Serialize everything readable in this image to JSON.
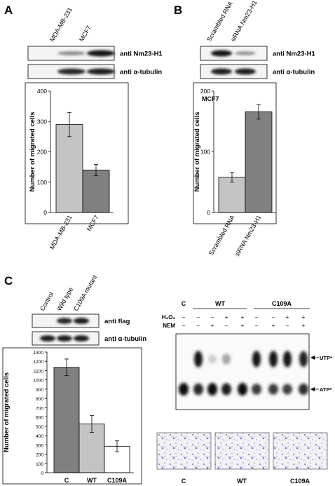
{
  "panels": {
    "A": {
      "letter": "A",
      "lanes": [
        "MDA-MB-231",
        "MCF7"
      ],
      "blots": [
        "anti Nm23-H1",
        "anti α-tubulin"
      ],
      "lane_intensity": [
        [
          0.35,
          1.0
        ],
        [
          0.9,
          0.95
        ]
      ]
    },
    "B": {
      "letter": "B",
      "lanes": [
        "Scrambled RNA",
        "siRNA Nm23-H1"
      ],
      "blots": [
        "anti Nm23-H1",
        "anti α-tubulin"
      ],
      "lane_intensity": [
        [
          1.0,
          0.3
        ],
        [
          0.95,
          0.95
        ]
      ]
    },
    "C": {
      "letter": "C",
      "lanes": [
        "Control",
        "Wild type",
        "C109A mutant"
      ],
      "blots": [
        "anti flag",
        "anti α-tubulin"
      ],
      "lane_intensity": [
        [
          0.0,
          0.9,
          0.95
        ],
        [
          0.95,
          0.95,
          0.95
        ]
      ]
    },
    "tlc": {
      "header": [
        "C",
        "WT",
        "C109A"
      ],
      "row_labels": [
        "H₂O₂",
        "NEM"
      ],
      "h2o2": [
        "–",
        "–",
        "–",
        "+",
        "+",
        "–",
        "–",
        "+",
        "+"
      ],
      "nem": [
        "–",
        "–",
        "+",
        "–",
        "+",
        "–",
        "+",
        "–",
        "+"
      ],
      "spot_labels": [
        "UTP*",
        "ATP*"
      ],
      "utp_intensity": [
        0.0,
        0.95,
        0.05,
        0.25,
        0.0,
        0.95,
        0.95,
        0.95,
        0.9
      ],
      "atp_intensity": [
        1.0,
        0.75,
        1.0,
        0.85,
        1.0,
        0.6,
        0.6,
        0.55,
        0.7
      ]
    },
    "micro": {
      "labels": [
        "C",
        "WT",
        "C109A"
      ]
    }
  },
  "chart_data": [
    {
      "type": "bar",
      "panel": "A",
      "categories": [
        "MDA-MB-231",
        "MCF7"
      ],
      "values": [
        290,
        140
      ],
      "errors": [
        40,
        18
      ],
      "colors": [
        "#c4c4c4",
        "#808080"
      ],
      "ylabel": "Number of migrated cells",
      "ylim": [
        0,
        400
      ],
      "yticks": [
        0,
        100,
        200,
        300,
        400
      ],
      "grid": false
    },
    {
      "type": "bar",
      "panel": "B",
      "title": "MCF7",
      "categories": [
        "Scrambled RNA",
        "siRNA Nm23-H1"
      ],
      "values": [
        58,
        166
      ],
      "errors": [
        8,
        12
      ],
      "colors": [
        "#c4c4c4",
        "#808080"
      ],
      "ylabel": "Number of migrated cells",
      "ylim": [
        0,
        200
      ],
      "yticks": [
        0,
        100,
        200
      ],
      "grid": false
    },
    {
      "type": "bar",
      "panel": "C",
      "categories": [
        "C",
        "WT",
        "C109A"
      ],
      "values": [
        1135,
        525,
        285
      ],
      "errors": [
        90,
        90,
        60
      ],
      "colors": [
        "#808080",
        "#c4c4c4",
        "#ffffff"
      ],
      "ylabel": "Number of migrated cells",
      "ylim": [
        0,
        1300
      ],
      "yticks": [
        0,
        100,
        200,
        300,
        400,
        500,
        600,
        700,
        800,
        900,
        1000,
        1100,
        1200,
        1300
      ],
      "grid": false
    }
  ]
}
